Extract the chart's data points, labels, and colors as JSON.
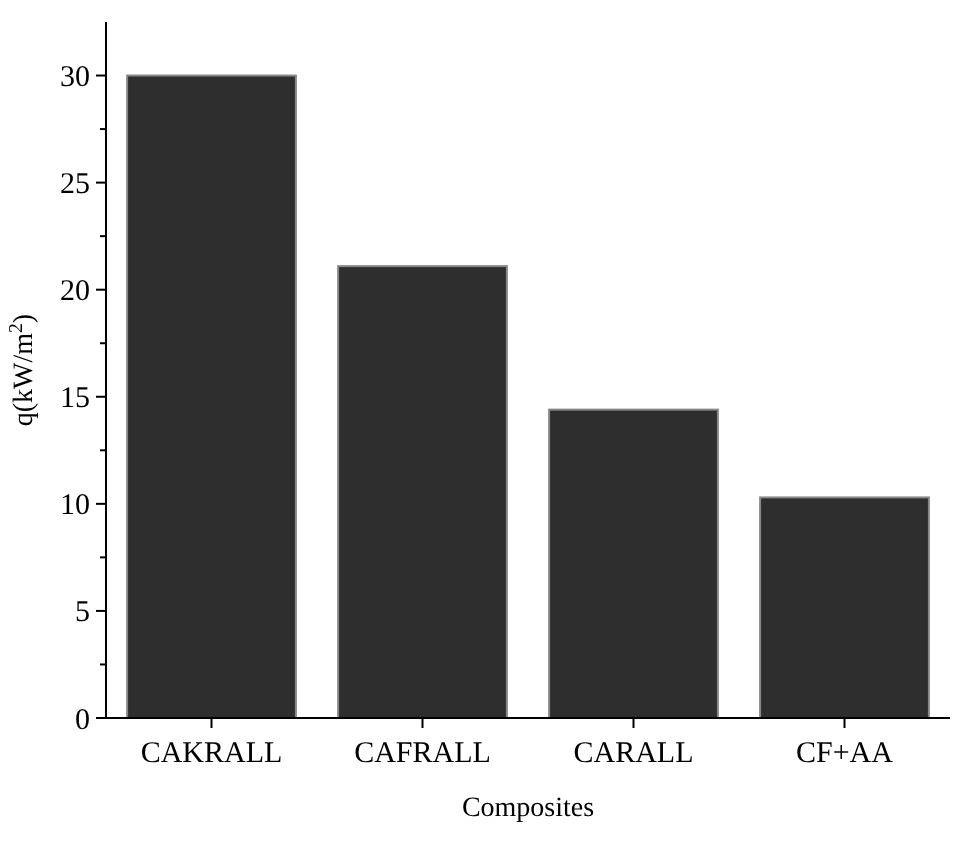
{
  "chart_data": {
    "type": "bar",
    "xlabel": "Composites",
    "ylabel": "q(kW/m$^{2}$)",
    "categories": [
      "CAKRALL",
      "CAFRALL",
      "CARALL",
      "CF+AA"
    ],
    "values": [
      30,
      21.1,
      14.4,
      10.3
    ],
    "color": "#2e2e2e",
    "ylim": [
      0,
      32.5
    ],
    "yticks": [
      0,
      5,
      10,
      15,
      20,
      25,
      30
    ],
    "grid": false
  }
}
